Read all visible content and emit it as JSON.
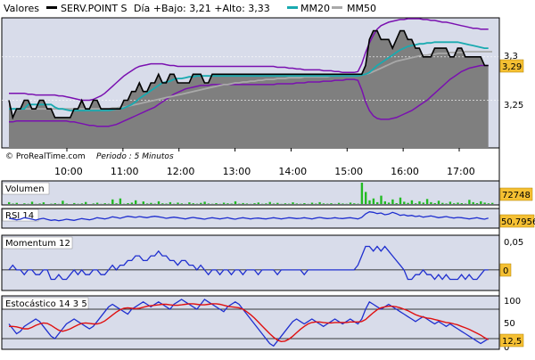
{
  "main": {
    "title": "Valores",
    "legend": [
      {
        "label": "SERV.POINT S",
        "color": "#000000"
      },
      {
        "label": "MM20",
        "color": "#19aab0"
      },
      {
        "label": "MM50",
        "color": "#a9a9a9"
      }
    ],
    "info": "Día +Bajo: 3,21 +Alto: 3,33",
    "credit": "© ProRealTime.com",
    "period": "Periodo : 5 Minutos",
    "last_label": "3,29",
    "y_ticks": [
      "3,3",
      "3,25"
    ]
  },
  "x_ticks": [
    "10:00",
    "11:00",
    "12:00",
    "13:00",
    "14:00",
    "15:00",
    "16:00",
    "17:00"
  ],
  "volumen": {
    "title": "Volumen",
    "last_label": "72748"
  },
  "rsi": {
    "title": "RSI 14",
    "last_label": "50,7956"
  },
  "momentum": {
    "title": "Momentum 12",
    "last_label": "0",
    "y_ticks": [
      "0,05",
      "0"
    ]
  },
  "estocastico": {
    "title": "Estocástico 14 3 5",
    "last_label": "12,5",
    "y_ticks": [
      "100",
      "50",
      "0"
    ]
  },
  "colors": {
    "price_fill": "#7f7f7f",
    "bollinger": "#7a10b0",
    "mm20": "#19aab0",
    "mm50": "#a9a9a9",
    "indicator_line": "#1f2fcf",
    "stoch_signal": "#e01010",
    "volume_bar": "#22bb22",
    "panel_bg": "#d8dcea",
    "label_bg": "#f5c033"
  },
  "chart_data": [
    {
      "type": "area",
      "y_range": [
        3.195,
        3.345
      ],
      "x_range": [
        0,
        126
      ],
      "price": [
        3.25,
        3.23,
        3.24,
        3.24,
        3.25,
        3.25,
        3.24,
        3.24,
        3.25,
        3.25,
        3.24,
        3.24,
        3.23,
        3.23,
        3.23,
        3.23,
        3.23,
        3.24,
        3.24,
        3.25,
        3.24,
        3.24,
        3.25,
        3.25,
        3.24,
        3.24,
        3.24,
        3.24,
        3.24,
        3.24,
        3.25,
        3.25,
        3.26,
        3.26,
        3.27,
        3.26,
        3.26,
        3.27,
        3.27,
        3.28,
        3.27,
        3.27,
        3.28,
        3.28,
        3.27,
        3.27,
        3.27,
        3.27,
        3.28,
        3.28,
        3.28,
        3.27,
        3.27,
        3.28,
        3.28,
        3.28,
        3.28,
        3.28,
        3.28,
        3.28,
        3.28,
        3.28,
        3.28,
        3.28,
        3.28,
        3.28,
        3.28,
        3.28,
        3.28,
        3.28,
        3.28,
        3.28,
        3.28,
        3.28,
        3.28,
        3.28,
        3.28,
        3.28,
        3.28,
        3.28,
        3.28,
        3.28,
        3.28,
        3.28,
        3.28,
        3.28,
        3.28,
        3.28,
        3.28,
        3.28,
        3.28,
        3.28,
        3.28,
        3.29,
        3.32,
        3.33,
        3.33,
        3.32,
        3.32,
        3.32,
        3.31,
        3.32,
        3.33,
        3.33,
        3.32,
        3.32,
        3.31,
        3.31,
        3.3,
        3.3,
        3.3,
        3.31,
        3.31,
        3.31,
        3.31,
        3.3,
        3.3,
        3.31,
        3.31,
        3.3,
        3.3,
        3.3,
        3.3,
        3.3,
        3.29,
        3.29
      ],
      "mm20": [
        3.24,
        3.24,
        3.24,
        3.24,
        3.24,
        3.245,
        3.245,
        3.245,
        3.245,
        3.245,
        3.245,
        3.245,
        3.242,
        3.24,
        3.24,
        3.239,
        3.238,
        3.238,
        3.238,
        3.238,
        3.238,
        3.238,
        3.238,
        3.238,
        3.238,
        3.238,
        3.238,
        3.239,
        3.24,
        3.24,
        3.241,
        3.243,
        3.245,
        3.248,
        3.252,
        3.255,
        3.258,
        3.261,
        3.264,
        3.267,
        3.27,
        3.271,
        3.272,
        3.274,
        3.275,
        3.275,
        3.276,
        3.277,
        3.277,
        3.278,
        3.278,
        3.278,
        3.278,
        3.278,
        3.278,
        3.278,
        3.278,
        3.278,
        3.278,
        3.278,
        3.278,
        3.278,
        3.278,
        3.278,
        3.278,
        3.278,
        3.278,
        3.278,
        3.278,
        3.278,
        3.278,
        3.278,
        3.278,
        3.278,
        3.278,
        3.278,
        3.278,
        3.278,
        3.278,
        3.278,
        3.278,
        3.278,
        3.278,
        3.278,
        3.278,
        3.278,
        3.278,
        3.278,
        3.278,
        3.278,
        3.278,
        3.278,
        3.279,
        3.28,
        3.282,
        3.286,
        3.29,
        3.293,
        3.296,
        3.299,
        3.302,
        3.305,
        3.308,
        3.31,
        3.312,
        3.313,
        3.314,
        3.315,
        3.315,
        3.316,
        3.316,
        3.317,
        3.317,
        3.317,
        3.317,
        3.317,
        3.317,
        3.317,
        3.316,
        3.315,
        3.314,
        3.313,
        3.312,
        3.311,
        3.31,
        3.31
      ],
      "mm50": [
        3.24,
        3.24,
        3.24,
        3.24,
        3.24,
        3.24,
        3.24,
        3.24,
        3.24,
        3.24,
        3.24,
        3.24,
        3.24,
        3.24,
        3.24,
        3.24,
        3.24,
        3.24,
        3.24,
        3.24,
        3.24,
        3.24,
        3.24,
        3.24,
        3.24,
        3.24,
        3.24,
        3.241,
        3.241,
        3.242,
        3.242,
        3.243,
        3.244,
        3.245,
        3.246,
        3.247,
        3.248,
        3.249,
        3.25,
        3.251,
        3.252,
        3.253,
        3.254,
        3.255,
        3.256,
        3.257,
        3.258,
        3.259,
        3.26,
        3.261,
        3.262,
        3.263,
        3.264,
        3.265,
        3.266,
        3.267,
        3.268,
        3.268,
        3.269,
        3.27,
        3.27,
        3.271,
        3.271,
        3.272,
        3.272,
        3.273,
        3.273,
        3.274,
        3.274,
        3.274,
        3.275,
        3.275,
        3.275,
        3.276,
        3.276,
        3.276,
        3.276,
        3.277,
        3.277,
        3.277,
        3.277,
        3.277,
        3.277,
        3.277,
        3.278,
        3.278,
        3.278,
        3.278,
        3.278,
        3.278,
        3.278,
        3.278,
        3.279,
        3.28,
        3.281,
        3.283,
        3.285,
        3.287,
        3.289,
        3.291,
        3.293,
        3.295,
        3.296,
        3.297,
        3.298,
        3.299,
        3.3,
        3.301,
        3.302,
        3.302,
        3.303,
        3.303,
        3.304,
        3.304,
        3.304,
        3.305,
        3.305,
        3.305,
        3.305,
        3.306,
        3.306,
        3.306,
        3.306,
        3.306,
        3.306,
        3.306,
        3.306
      ],
      "boll_upper": [
        3.258,
        3.258,
        3.258,
        3.258,
        3.258,
        3.257,
        3.257,
        3.256,
        3.256,
        3.256,
        3.256,
        3.256,
        3.256,
        3.255,
        3.255,
        3.254,
        3.253,
        3.252,
        3.251,
        3.25,
        3.25,
        3.25,
        3.251,
        3.253,
        3.255,
        3.258,
        3.262,
        3.266,
        3.27,
        3.274,
        3.278,
        3.281,
        3.284,
        3.287,
        3.289,
        3.29,
        3.291,
        3.292,
        3.292,
        3.292,
        3.292,
        3.291,
        3.29,
        3.29,
        3.289,
        3.289,
        3.289,
        3.289,
        3.289,
        3.289,
        3.289,
        3.289,
        3.289,
        3.289,
        3.289,
        3.289,
        3.289,
        3.289,
        3.289,
        3.289,
        3.289,
        3.289,
        3.289,
        3.289,
        3.289,
        3.289,
        3.289,
        3.289,
        3.289,
        3.289,
        3.288,
        3.288,
        3.288,
        3.287,
        3.287,
        3.286,
        3.286,
        3.285,
        3.285,
        3.285,
        3.285,
        3.285,
        3.284,
        3.284,
        3.284,
        3.283,
        3.283,
        3.282,
        3.282,
        3.282,
        3.282,
        3.283,
        3.292,
        3.305,
        3.316,
        3.325,
        3.332,
        3.336,
        3.338,
        3.34,
        3.341,
        3.342,
        3.343,
        3.343,
        3.344,
        3.344,
        3.344,
        3.344,
        3.343,
        3.343,
        3.342,
        3.342,
        3.341,
        3.34,
        3.34,
        3.339,
        3.338,
        3.337,
        3.336,
        3.335,
        3.334,
        3.333,
        3.333,
        3.332,
        3.332,
        3.332
      ],
      "boll_lower": [
        3.225,
        3.225,
        3.226,
        3.226,
        3.226,
        3.226,
        3.226,
        3.226,
        3.226,
        3.226,
        3.226,
        3.226,
        3.226,
        3.226,
        3.226,
        3.226,
        3.225,
        3.225,
        3.224,
        3.223,
        3.222,
        3.221,
        3.221,
        3.22,
        3.22,
        3.22,
        3.22,
        3.221,
        3.222,
        3.224,
        3.226,
        3.228,
        3.23,
        3.232,
        3.234,
        3.236,
        3.238,
        3.24,
        3.242,
        3.245,
        3.248,
        3.251,
        3.254,
        3.257,
        3.259,
        3.261,
        3.263,
        3.264,
        3.265,
        3.266,
        3.267,
        3.267,
        3.267,
        3.268,
        3.268,
        3.268,
        3.268,
        3.268,
        3.268,
        3.268,
        3.268,
        3.268,
        3.268,
        3.268,
        3.268,
        3.268,
        3.268,
        3.268,
        3.268,
        3.268,
        3.269,
        3.269,
        3.269,
        3.269,
        3.269,
        3.27,
        3.27,
        3.27,
        3.271,
        3.271,
        3.271,
        3.271,
        3.272,
        3.272,
        3.272,
        3.273,
        3.273,
        3.273,
        3.274,
        3.274,
        3.274,
        3.273,
        3.262,
        3.248,
        3.238,
        3.232,
        3.229,
        3.228,
        3.228,
        3.228,
        3.229,
        3.23,
        3.232,
        3.234,
        3.236,
        3.238,
        3.241,
        3.244,
        3.247,
        3.25,
        3.254,
        3.258,
        3.262,
        3.266,
        3.27,
        3.274,
        3.277,
        3.28,
        3.283,
        3.285,
        3.287,
        3.288,
        3.289,
        3.29,
        3.29,
        3.29
      ]
    },
    {
      "type": "bar",
      "name": "Volumen",
      "x_range": [
        0,
        126
      ],
      "values": [
        20,
        5,
        12,
        0,
        8,
        3,
        25,
        2,
        6,
        18,
        0,
        4,
        9,
        2,
        35,
        5,
        0,
        11,
        3,
        7,
        22,
        0,
        6,
        14,
        2,
        9,
        4,
        50,
        8,
        60,
        3,
        10,
        15,
        40,
        2,
        28,
        6,
        12,
        4,
        30,
        8,
        5,
        20,
        3,
        15,
        7,
        2,
        18,
        9,
        4,
        12,
        25,
        6,
        3,
        10,
        2,
        14,
        8,
        5,
        30,
        4,
        11,
        6,
        2,
        9,
        16,
        3,
        7,
        22,
        5,
        12,
        2,
        8,
        4,
        18,
        6,
        3,
        10,
        2,
        14,
        5,
        20,
        7,
        4,
        9,
        2,
        12,
        6,
        3,
        15,
        8,
        4,
        230,
        130,
        40,
        60,
        20,
        90,
        30,
        15,
        50,
        10,
        70,
        25,
        12,
        40,
        8,
        30,
        15,
        55,
        20,
        10,
        35,
        12,
        6,
        25,
        8,
        15,
        10,
        5,
        45,
        20,
        10,
        30,
        15,
        8,
        12
      ]
    },
    {
      "type": "line",
      "name": "RSI",
      "y_range": [
        0,
        100
      ],
      "x_range": [
        0,
        126
      ],
      "values": [
        50,
        48,
        45,
        47,
        52,
        50,
        47,
        44,
        48,
        50,
        46,
        43,
        45,
        42,
        44,
        47,
        45,
        43,
        46,
        49,
        47,
        45,
        48,
        52,
        50,
        48,
        51,
        55,
        53,
        50,
        54,
        57,
        55,
        53,
        56,
        54,
        52,
        55,
        57,
        55,
        53,
        50,
        52,
        54,
        52,
        50,
        48,
        51,
        53,
        51,
        49,
        47,
        50,
        52,
        50,
        48,
        50,
        52,
        49,
        47,
        50,
        52,
        50,
        48,
        50,
        51,
        49,
        48,
        50,
        52,
        50,
        48,
        50,
        52,
        51,
        49,
        50,
        52,
        50,
        48,
        51,
        53,
        51,
        49,
        50,
        52,
        50,
        49,
        51,
        52,
        50,
        48,
        53,
        65,
        72,
        70,
        66,
        68,
        62,
        64,
        70,
        66,
        60,
        62,
        58,
        60,
        56,
        58,
        54,
        56,
        58,
        55,
        52,
        54,
        56,
        53,
        51,
        53,
        52,
        50,
        48,
        50,
        52,
        49,
        47,
        51
      ]
    },
    {
      "type": "line",
      "name": "Momentum",
      "y_range": [
        -0.04,
        0.07
      ],
      "x_range": [
        0,
        126
      ],
      "values": [
        0,
        0.01,
        0,
        0,
        -0.01,
        0,
        0,
        -0.01,
        -0.01,
        0,
        0,
        -0.02,
        -0.02,
        -0.01,
        -0.02,
        -0.02,
        -0.01,
        0,
        -0.01,
        0,
        -0.01,
        -0.01,
        0,
        0,
        -0.01,
        -0.01,
        0,
        0.01,
        0,
        0.01,
        0.01,
        0.02,
        0.02,
        0.03,
        0.03,
        0.02,
        0.02,
        0.03,
        0.03,
        0.04,
        0.03,
        0.03,
        0.02,
        0.02,
        0.01,
        0.02,
        0.02,
        0.01,
        0.01,
        0,
        0.01,
        0,
        -0.01,
        0,
        0,
        -0.01,
        0,
        0,
        -0.01,
        0,
        0,
        -0.01,
        0,
        0,
        0,
        -0.01,
        0,
        0,
        0,
        0,
        -0.01,
        0,
        0,
        0,
        0,
        0,
        0,
        -0.01,
        0,
        0,
        0,
        0,
        0,
        0,
        0,
        0,
        0,
        0,
        0,
        0,
        0,
        0.01,
        0.03,
        0.05,
        0.05,
        0.04,
        0.05,
        0.04,
        0.05,
        0.04,
        0.03,
        0.02,
        0.01,
        0,
        -0.02,
        -0.02,
        -0.01,
        -0.01,
        0,
        -0.01,
        -0.01,
        -0.02,
        -0.01,
        -0.02,
        -0.01,
        -0.02,
        -0.02,
        -0.02,
        -0.01,
        -0.02,
        -0.01,
        -0.02,
        -0.02,
        -0.01,
        0,
        0
      ]
    },
    {
      "type": "line",
      "name": "Estocástico",
      "y_range": [
        0,
        100
      ],
      "x_range": [
        0,
        126
      ],
      "k": [
        50,
        40,
        30,
        35,
        45,
        50,
        55,
        60,
        55,
        45,
        35,
        25,
        20,
        30,
        40,
        50,
        55,
        60,
        55,
        50,
        45,
        40,
        45,
        55,
        65,
        75,
        85,
        90,
        85,
        80,
        75,
        70,
        80,
        85,
        90,
        95,
        90,
        85,
        90,
        95,
        90,
        85,
        80,
        90,
        95,
        100,
        95,
        90,
        85,
        80,
        90,
        100,
        95,
        90,
        85,
        80,
        75,
        85,
        90,
        95,
        90,
        80,
        70,
        60,
        50,
        40,
        30,
        20,
        10,
        5,
        15,
        25,
        35,
        45,
        55,
        60,
        55,
        50,
        55,
        60,
        55,
        50,
        45,
        50,
        55,
        60,
        55,
        50,
        55,
        60,
        55,
        50,
        60,
        80,
        95,
        90,
        85,
        80,
        85,
        90,
        85,
        80,
        75,
        70,
        65,
        60,
        55,
        60,
        65,
        60,
        55,
        50,
        55,
        50,
        45,
        50,
        45,
        40,
        35,
        30,
        25,
        20,
        15,
        10,
        15,
        20
      ],
      "d": [
        45,
        45,
        44,
        42,
        40,
        40,
        43,
        47,
        50,
        52,
        51,
        47,
        42,
        37,
        35,
        37,
        40,
        44,
        48,
        51,
        52,
        51,
        50,
        50,
        52,
        56,
        62,
        68,
        74,
        79,
        82,
        83,
        82,
        81,
        82,
        84,
        86,
        87,
        88,
        89,
        90,
        90,
        89,
        88,
        88,
        89,
        90,
        91,
        91,
        90,
        89,
        89,
        90,
        91,
        91,
        90,
        88,
        86,
        85,
        84,
        83,
        80,
        75,
        69,
        62,
        54,
        46,
        38,
        30,
        23,
        17,
        14,
        15,
        19,
        25,
        32,
        39,
        45,
        50,
        53,
        54,
        54,
        53,
        52,
        52,
        53,
        53,
        53,
        53,
        54,
        54,
        54,
        55,
        59,
        66,
        73,
        79,
        83,
        85,
        86,
        86,
        85,
        83,
        80,
        77,
        73,
        69,
        66,
        64,
        62,
        61,
        59,
        57,
        55,
        53,
        52,
        50,
        48,
        45,
        42,
        39,
        35,
        31,
        27,
        22,
        18
      ]
    }
  ]
}
